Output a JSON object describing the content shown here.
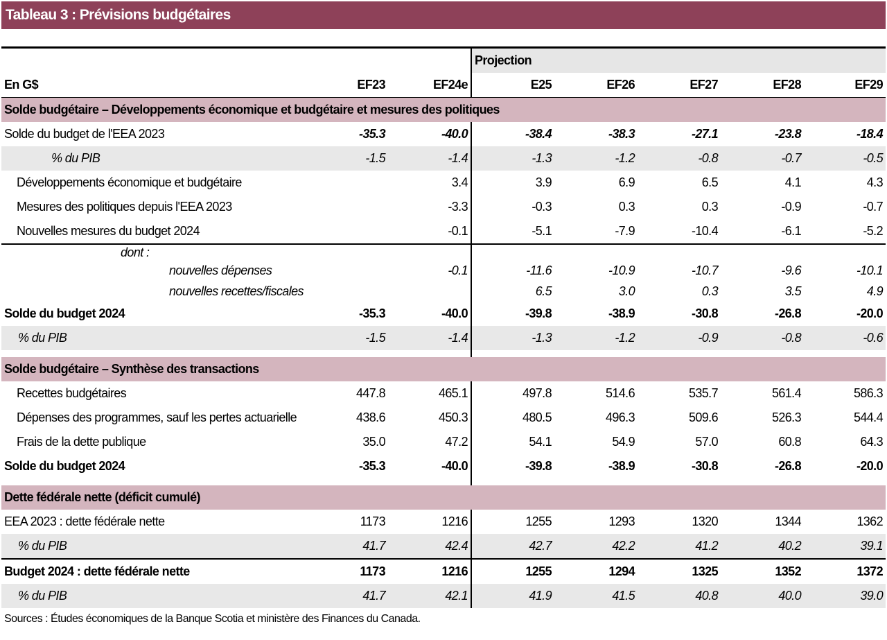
{
  "title": "Tableau 3 : Prévisions budgétaires",
  "header": {
    "projection": "Projection",
    "unit": "En G$",
    "columns": [
      "EF23",
      "EF24e",
      "E25",
      "EF26",
      "EF27",
      "EF28",
      "EF29"
    ]
  },
  "sections": [
    {
      "title": "Solde budgétaire – Développements économique et budgétaire et mesures des politiques",
      "rows": [
        {
          "label": "Solde du budget de l'EEA 2023",
          "values": [
            "-35.3",
            "-40.0",
            "-38.4",
            "-38.3",
            "-27.1",
            "-23.8",
            "-18.4"
          ]
        },
        {
          "label": "% du PIB",
          "values": [
            "-1.5",
            "-1.4",
            "-1.3",
            "-1.2",
            "-0.8",
            "-0.7",
            "-0.5"
          ]
        },
        {
          "label": "Développements économique et budgétaire",
          "values": [
            null,
            "3.4",
            "3.9",
            "6.9",
            "6.5",
            "4.1",
            "4.3"
          ]
        },
        {
          "label": "Mesures des politiques depuis l'EEA 2023",
          "values": [
            null,
            "-3.3",
            "-0.3",
            "0.3",
            "0.3",
            "-0.9",
            "-0.7"
          ]
        },
        {
          "label": "Nouvelles mesures du budget 2024",
          "values": [
            null,
            "-0.1",
            "-5.1",
            "-7.9",
            "-10.4",
            "-6.1",
            "-5.2"
          ]
        },
        {
          "label": "dont :",
          "values": [
            null,
            null,
            null,
            null,
            null,
            null,
            null
          ]
        },
        {
          "label": "nouvelles dépenses",
          "values": [
            null,
            "-0.1",
            "-11.6",
            "-10.9",
            "-10.7",
            "-9.6",
            "-10.1"
          ]
        },
        {
          "label": "nouvelles recettes/fiscales",
          "values": [
            null,
            null,
            "6.5",
            "3.0",
            "0.3",
            "3.5",
            "4.9"
          ]
        },
        {
          "label": "Solde du budget 2024",
          "values": [
            "-35.3",
            "-40.0",
            "-39.8",
            "-38.9",
            "-30.8",
            "-26.8",
            "-20.0"
          ]
        },
        {
          "label": "% du PIB",
          "values": [
            "-1.5",
            "-1.4",
            "-1.3",
            "-1.2",
            "-0.9",
            "-0.8",
            "-0.6"
          ]
        }
      ]
    },
    {
      "title": "Solde budgétaire – Synthèse des transactions",
      "rows": [
        {
          "label": "Recettes budgétaires",
          "values": [
            "447.8",
            "465.1",
            "497.8",
            "514.6",
            "535.7",
            "561.4",
            "586.3"
          ]
        },
        {
          "label": "Dépenses des programmes, sauf les pertes actuarielle",
          "values": [
            "438.6",
            "450.3",
            "480.5",
            "496.3",
            "509.6",
            "526.3",
            "544.4"
          ]
        },
        {
          "label": "Frais de la dette publique",
          "values": [
            "35.0",
            "47.2",
            "54.1",
            "54.9",
            "57.0",
            "60.8",
            "64.3"
          ]
        },
        {
          "label": "Solde du budget 2024",
          "values": [
            "-35.3",
            "-40.0",
            "-39.8",
            "-38.9",
            "-30.8",
            "-26.8",
            "-20.0"
          ]
        }
      ]
    },
    {
      "title": "Dette fédérale nette (déficit cumulé)",
      "rows": [
        {
          "label": "EEA 2023 : dette fédérale nette",
          "values": [
            "1173",
            "1216",
            "1255",
            "1293",
            "1320",
            "1344",
            "1362"
          ]
        },
        {
          "label": "% du PIB",
          "values": [
            "41.7",
            "42.4",
            "42.7",
            "42.2",
            "41.2",
            "40.2",
            "39.1"
          ]
        },
        {
          "label": "Budget 2024 : dette fédérale nette",
          "values": [
            "1173",
            "1216",
            "1255",
            "1294",
            "1325",
            "1352",
            "1372"
          ]
        },
        {
          "label": "% du PIB",
          "values": [
            "41.7",
            "42.1",
            "41.9",
            "41.5",
            "40.8",
            "40.0",
            "39.0"
          ]
        }
      ]
    }
  ],
  "sources": "Sources : Études économiques de la Banque Scotia et ministère des Finances du Canada."
}
